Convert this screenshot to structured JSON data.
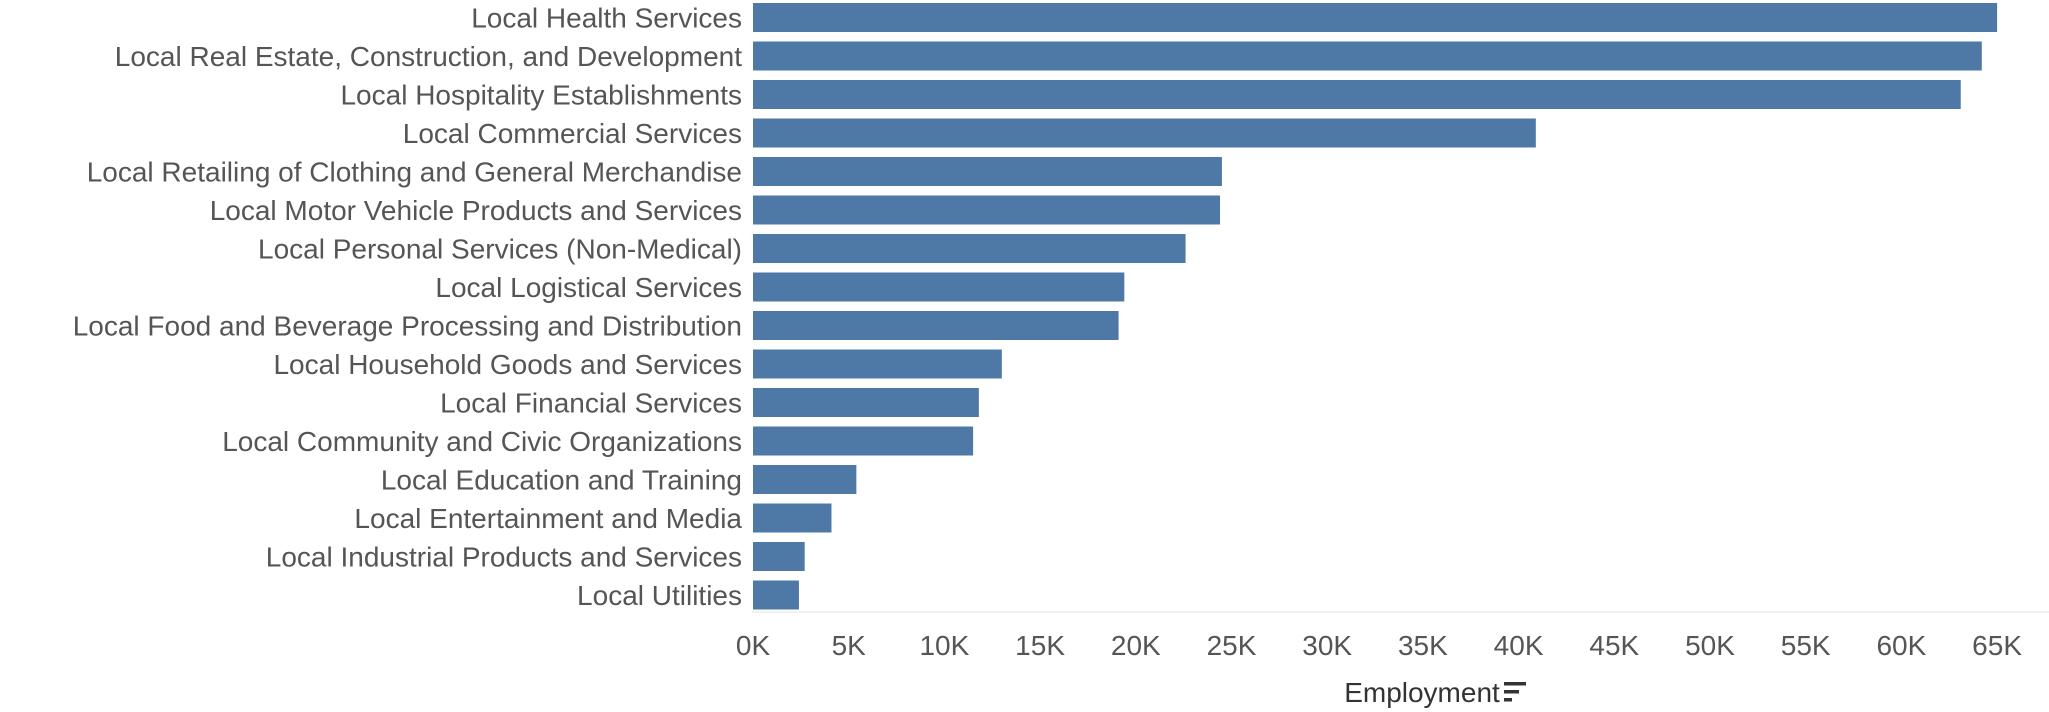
{
  "chart_data": {
    "type": "bar",
    "orientation": "horizontal",
    "categories": [
      "Local Health Services",
      "Local Real Estate, Construction, and Development",
      "Local Hospitality Establishments",
      "Local Commercial Services",
      "Local Retailing of Clothing and General Merchandise",
      "Local Motor Vehicle Products and Services",
      "Local Personal Services (Non-Medical)",
      "Local Logistical Services",
      "Local Food and Beverage Processing and Distribution",
      "Local Household Goods and Services",
      "Local Financial Services",
      "Local Community and Civic Organizations",
      "Local Education and Training",
      "Local Entertainment and Media",
      "Local Industrial Products and Services",
      "Local Utilities"
    ],
    "values": [
      65000,
      64200,
      63100,
      40900,
      24500,
      24400,
      22600,
      19400,
      19100,
      13000,
      11800,
      11500,
      5400,
      4100,
      2700,
      2400
    ],
    "xlabel": "Employment",
    "ylabel": "",
    "xlim": [
      0,
      67000
    ],
    "ticks": [
      0,
      5000,
      10000,
      15000,
      20000,
      25000,
      30000,
      35000,
      40000,
      45000,
      50000,
      55000,
      60000,
      65000
    ],
    "tick_labels": [
      "0K",
      "5K",
      "10K",
      "15K",
      "20K",
      "25K",
      "30K",
      "35K",
      "40K",
      "45K",
      "50K",
      "55K",
      "60K",
      "65K"
    ],
    "sort_indicator": "sort-descending-icon",
    "grid": false,
    "bar_color": "#4e79a7"
  }
}
